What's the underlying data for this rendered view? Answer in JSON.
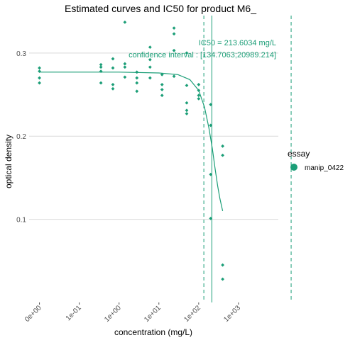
{
  "chart_data": {
    "type": "scatter",
    "title": "Estimated curves and IC50 for product M6_",
    "xlabel": "concentration (mg/L)",
    "ylabel": "optical density",
    "x_scale": "log10",
    "x_ticks": [
      {
        "value": 0.001,
        "label": "0e+00"
      },
      {
        "value": 0.01,
        "label": "1e-01"
      },
      {
        "value": 0.1,
        "label": "1e+00"
      },
      {
        "value": 1,
        "label": "1e+01"
      },
      {
        "value": 10,
        "label": "1e+02"
      },
      {
        "value": 100,
        "label": "1e+03"
      }
    ],
    "xlim": [
      0.00055,
      1000
    ],
    "y_ticks": [
      {
        "value": 0.1,
        "label": "0.1"
      },
      {
        "value": 0.2,
        "label": "0.2"
      },
      {
        "value": 0.3,
        "label": "0.3"
      }
    ],
    "ylim": [
      0.0,
      0.345
    ],
    "grid": "horizontal",
    "color": "#1b9e77",
    "legend": {
      "title": "essay",
      "placement": "right",
      "entries": [
        "manip_0422"
      ]
    },
    "series": [
      {
        "name": "manip_0422",
        "points": [
          {
            "x": 0.001,
            "y": 0.282
          },
          {
            "x": 0.001,
            "y": 0.278
          },
          {
            "x": 0.001,
            "y": 0.27
          },
          {
            "x": 0.001,
            "y": 0.264
          },
          {
            "x": 0.035,
            "y": 0.286
          },
          {
            "x": 0.035,
            "y": 0.283
          },
          {
            "x": 0.035,
            "y": 0.278
          },
          {
            "x": 0.035,
            "y": 0.264
          },
          {
            "x": 0.07,
            "y": 0.293
          },
          {
            "x": 0.07,
            "y": 0.282
          },
          {
            "x": 0.07,
            "y": 0.262
          },
          {
            "x": 0.07,
            "y": 0.257
          },
          {
            "x": 0.14,
            "y": 0.337
          },
          {
            "x": 0.14,
            "y": 0.287
          },
          {
            "x": 0.14,
            "y": 0.283
          },
          {
            "x": 0.14,
            "y": 0.271
          },
          {
            "x": 0.28,
            "y": 0.277
          },
          {
            "x": 0.28,
            "y": 0.27
          },
          {
            "x": 0.28,
            "y": 0.264
          },
          {
            "x": 0.28,
            "y": 0.254
          },
          {
            "x": 0.6,
            "y": 0.307
          },
          {
            "x": 0.6,
            "y": 0.292
          },
          {
            "x": 0.6,
            "y": 0.283
          },
          {
            "x": 0.6,
            "y": 0.27
          },
          {
            "x": 1.2,
            "y": 0.274
          },
          {
            "x": 1.2,
            "y": 0.262
          },
          {
            "x": 1.2,
            "y": 0.256
          },
          {
            "x": 1.2,
            "y": 0.249
          },
          {
            "x": 2.4,
            "y": 0.33
          },
          {
            "x": 2.4,
            "y": 0.323
          },
          {
            "x": 2.4,
            "y": 0.303
          },
          {
            "x": 2.4,
            "y": 0.272
          },
          {
            "x": 5,
            "y": 0.3
          },
          {
            "x": 5,
            "y": 0.261
          },
          {
            "x": 5,
            "y": 0.24
          },
          {
            "x": 5,
            "y": 0.231
          },
          {
            "x": 5,
            "y": 0.227
          },
          {
            "x": 10,
            "y": 0.262
          },
          {
            "x": 10,
            "y": 0.255
          },
          {
            "x": 10,
            "y": 0.249
          },
          {
            "x": 10,
            "y": 0.245
          },
          {
            "x": 20,
            "y": 0.238
          },
          {
            "x": 20,
            "y": 0.213
          },
          {
            "x": 20,
            "y": 0.154
          },
          {
            "x": 20,
            "y": 0.101
          },
          {
            "x": 40,
            "y": 0.188
          },
          {
            "x": 40,
            "y": 0.177
          },
          {
            "x": 40,
            "y": 0.045
          },
          {
            "x": 40,
            "y": 0.028
          }
        ]
      }
    ],
    "fitted_curve": {
      "x": [
        0.001,
        0.01,
        0.1,
        1,
        3,
        6,
        10,
        14,
        18,
        22,
        26,
        30,
        34,
        40
      ],
      "y": [
        0.277,
        0.277,
        0.277,
        0.276,
        0.274,
        0.268,
        0.255,
        0.235,
        0.21,
        0.185,
        0.16,
        0.14,
        0.125,
        0.11
      ]
    },
    "ic50": {
      "value": 21.36034,
      "ci_low": 13.47063,
      "ci_high": 2098.9214,
      "label": "IC50 = 213.6034 mg/L",
      "ci_label": "confidence interval : [134.7063;20989.214]"
    }
  }
}
